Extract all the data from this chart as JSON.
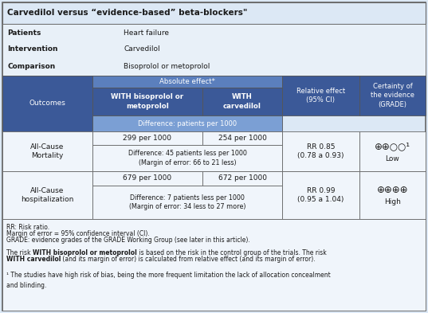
{
  "title": "Carvedilol versus “evidence-based” beta-blockers\"",
  "patients_label": "Patients",
  "patients_value": "Heart failure",
  "intervention_label": "Intervention",
  "intervention_value": "Carvedilol",
  "comparison_label": "Comparison",
  "comparison_value": "Bisoprolol or metoprolol",
  "header_absolute": "Absolute effect*",
  "header_with_biso": "WITH bisoprolol or\nmetoprolol",
  "header_with_carv": "WITH\ncarvedilol",
  "header_relative": "Relative effect\n(95% CI)",
  "header_certainty": "Certainty of\nthe evidence\n(GRADE)",
  "header_diff": "Difference: patients per 1000",
  "header_outcomes": "Outcomes",
  "row1_outcome": "All-Cause\nMortality",
  "row1_biso": "299 per 1000",
  "row1_carv": "254 per 1000",
  "row1_diff": "Difference: 45 patients less per 1000\n(Margin of error: 66 to 21 less)",
  "row1_rr": "RR 0.85\n(0.78 a 0.93)",
  "row1_grade_circles": "⊕⊕○○¹",
  "row1_grade_level": "Low",
  "row2_outcome": "All-Cause\nhospitalization",
  "row2_biso": "679 per 1000",
  "row2_carv": "672 per 1000",
  "row2_diff": "Difference: 7 patients less per 1000\n(Margin of error: 34 less to 27 more)",
  "row2_rr": "RR 0.99\n(0.95 a 1.04)",
  "row2_grade_circles": "⊕⊕⊕⊕",
  "row2_grade_level": "High",
  "footnote1": "RR: Risk ratio.",
  "footnote2": "Margin of error = 95% confidence interval (CI).",
  "footnote3": "GRADE: evidence grades of the GRADE Working Group (see later in this article).",
  "footnote4_plain1": "The risk ",
  "footnote4_bold1": "WITH bisoprolol or metoprolol",
  "footnote4_plain2": " is based on the risk in the control group of the trials. The risk",
  "footnote4_bold2": "WITH carvedilol",
  "footnote4_plain3": " (and its margin of error) is calculated from relative effect (and its margin of error).",
  "footnote5": "¹ The studies have high risk of bias, being the more frequent limitation the lack of allocation concealment\nand blinding.",
  "color_dark_blue": "#3b5998",
  "color_medium_blue": "#5b7fbd",
  "color_diff_bg": "#7b9fd4",
  "color_border": "#555555",
  "color_white": "#ffffff",
  "color_text_dark": "#1a1a1a",
  "color_bg": "#dce8f5",
  "color_cell_bg": "#f0f5fb",
  "color_footnote_bg": "#f0f5fb",
  "color_patient_bg": "#e8f0f8"
}
